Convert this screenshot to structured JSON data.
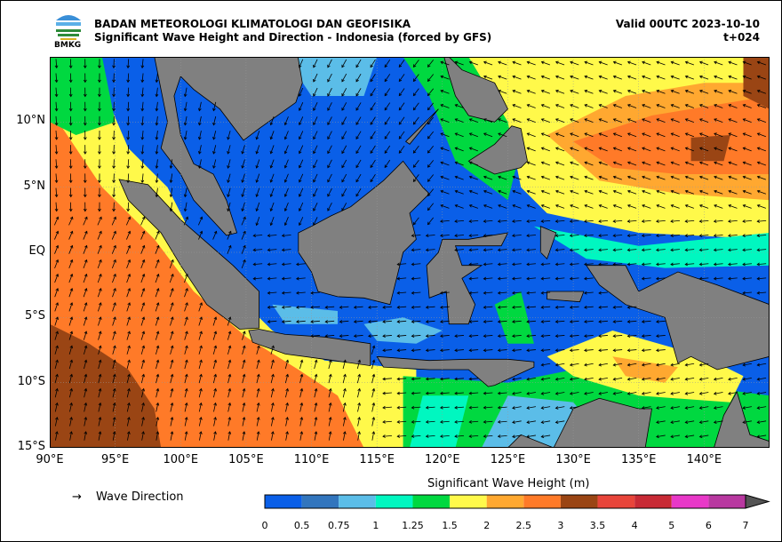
{
  "header": {
    "org": "BADAN METEOROLOGI KLIMATOLOGI DAN GEOFISIKA",
    "title": "Significant Wave Height and Direction - Indonesia (forced by GFS)",
    "valid": "Valid 00UTC 2023-10-10",
    "lead": "t+024",
    "logo_text": "BMKG"
  },
  "axes": {
    "lat_labels": [
      "10°N",
      "5°N",
      "EQ",
      "5°S",
      "10°S",
      "15°S"
    ],
    "lon_labels": [
      "90°E",
      "95°E",
      "100°E",
      "105°E",
      "110°E",
      "115°E",
      "120°E",
      "125°E",
      "130°E",
      "135°E",
      "140°E"
    ]
  },
  "legend": {
    "arrow": "→",
    "label": "Wave Direction"
  },
  "colorbar": {
    "title": "Significant Wave Height (m)",
    "ticks": [
      "0",
      "0.5",
      "0.75",
      "1",
      "1.25",
      "1.5",
      "2",
      "2.5",
      "3",
      "3.5",
      "4",
      "5",
      "6",
      "7"
    ],
    "colors": [
      "#0a5fe8",
      "#3275bd",
      "#5bbde8",
      "#00f7c0",
      "#00d840",
      "#fff94a",
      "#ffa830",
      "#ff7a28",
      "#9a4514",
      "#e8453a",
      "#c82a35",
      "#e838c8",
      "#b838a0"
    ],
    "over_color": "#555555"
  }
}
